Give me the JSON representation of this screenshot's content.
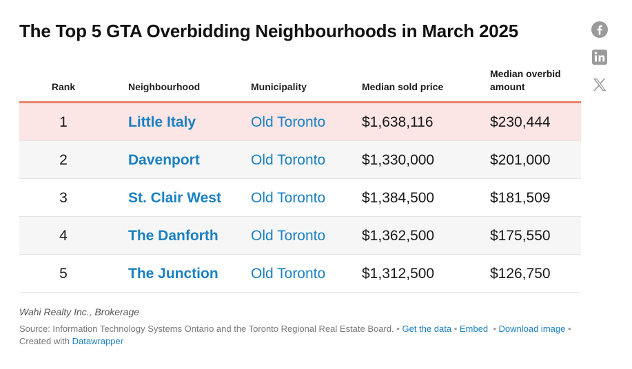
{
  "title": "The Top 5 GTA Overbidding Neighbourhoods in March 2025",
  "social": [
    {
      "name": "facebook-icon",
      "color": "#9a9a9a"
    },
    {
      "name": "linkedin-icon",
      "color": "#9a9a9a"
    },
    {
      "name": "x-icon",
      "color": "#9a9a9a"
    }
  ],
  "colors": {
    "accent_border": "#e8846a",
    "highlight_row": "#fce5e5",
    "alt_row": "#f6f6f6",
    "link": "#1a80c3"
  },
  "chart_data": {
    "type": "table",
    "title": "The Top 5 GTA Overbidding Neighbourhoods in March 2025",
    "columns": [
      "Rank",
      "Neighbourhood",
      "Municipality",
      "Median sold price",
      "Median overbid amount"
    ],
    "rows": [
      {
        "rank": "1",
        "neighbourhood": "Little Italy",
        "municipality": "Old Toronto",
        "median_sold_price": "$1,638,116",
        "median_overbid_amount": "$230,444",
        "highlight": true
      },
      {
        "rank": "2",
        "neighbourhood": "Davenport",
        "municipality": "Old Toronto",
        "median_sold_price": "$1,330,000",
        "median_overbid_amount": "$201,000",
        "highlight": false
      },
      {
        "rank": "3",
        "neighbourhood": "St. Clair West",
        "municipality": "Old Toronto",
        "median_sold_price": "$1,384,500",
        "median_overbid_amount": "$181,509",
        "highlight": false
      },
      {
        "rank": "4",
        "neighbourhood": "The Danforth",
        "municipality": "Old Toronto",
        "median_sold_price": "$1,362,500",
        "median_overbid_amount": "$175,550",
        "highlight": false
      },
      {
        "rank": "5",
        "neighbourhood": "The Junction",
        "municipality": "Old Toronto",
        "median_sold_price": "$1,312,500",
        "median_overbid_amount": "$126,750",
        "highlight": false
      }
    ]
  },
  "footer": {
    "brand": "Wahi Realty Inc., Brokerage",
    "source_label": "Source: ",
    "source_text": "Information Technology Systems Ontario and the Toronto Regional Real Estate Board.",
    "get_data": "Get the data",
    "embed": "Embed",
    "download_image": "Download image",
    "created_with_label": "Created with ",
    "datawrapper": "Datawrapper"
  }
}
